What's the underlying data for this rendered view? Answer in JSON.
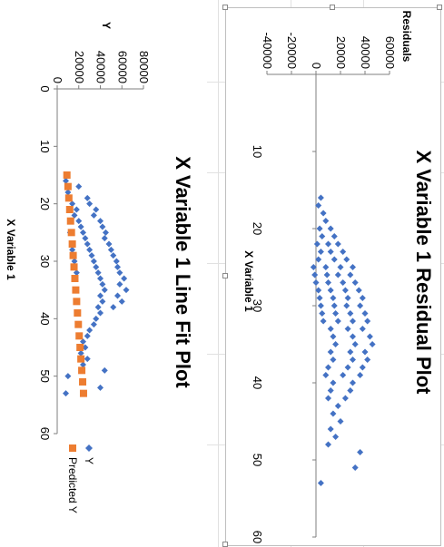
{
  "chart_data": [
    {
      "type": "scatter",
      "title": "X Variable 1  Residual Plot",
      "xlabel": "X Variable 1",
      "ylabel": "Residuals",
      "xlim": [
        0,
        60
      ],
      "ylim": [
        -40000,
        60000
      ],
      "x_ticks": [
        "10",
        "20",
        "30",
        "40",
        "50",
        "60"
      ],
      "y_ticks": [
        "-40000",
        "-20000",
        "0",
        "20000",
        "40000",
        "60000"
      ],
      "grid": false,
      "legend": "none",
      "series": [
        {
          "color": "#4472c4",
          "marker": "diamond",
          "x": [
            16,
            17,
            18,
            19,
            20,
            20,
            21,
            21,
            22,
            22,
            22,
            23,
            23,
            23,
            24,
            24,
            24,
            25,
            25,
            25,
            25,
            26,
            26,
            26,
            26,
            27,
            27,
            27,
            27,
            28,
            28,
            28,
            28,
            29,
            29,
            29,
            29,
            30,
            30,
            30,
            30,
            31,
            31,
            31,
            31,
            32,
            32,
            32,
            32,
            33,
            33,
            33,
            34,
            34,
            34,
            35,
            35,
            35,
            36,
            36,
            36,
            37,
            37,
            37,
            38,
            38,
            38,
            39,
            39,
            39,
            40,
            40,
            41,
            41,
            42,
            42,
            43,
            44,
            45,
            46,
            47,
            48,
            49,
            51,
            53
          ],
          "y": [
            4000,
            2000,
            6000,
            8000,
            12000,
            3000,
            15000,
            5000,
            18000,
            10000,
            1000,
            22000,
            12000,
            4000,
            25000,
            15000,
            2000,
            30000,
            20000,
            8000,
            -2000,
            28000,
            18000,
            9000,
            -1000,
            32000,
            22000,
            10000,
            0,
            35000,
            24000,
            12000,
            2000,
            38000,
            26000,
            14000,
            3000,
            36000,
            25000,
            15000,
            4000,
            40000,
            28000,
            16000,
            5000,
            42000,
            30000,
            18000,
            6000,
            38000,
            26000,
            12000,
            44000,
            30000,
            14000,
            46000,
            32000,
            16000,
            40000,
            28000,
            12000,
            42000,
            30000,
            14000,
            38000,
            26000,
            10000,
            36000,
            22000,
            8000,
            30000,
            14000,
            28000,
            12000,
            24000,
            10000,
            18000,
            14000,
            20000,
            12000,
            16000,
            10000,
            36000,
            32000,
            4000
          ]
        }
      ]
    },
    {
      "type": "scatter",
      "title": "X Variable 1 Line Fit  Plot",
      "xlabel": "X Variable 1",
      "ylabel": "Y",
      "xlim": [
        0,
        60
      ],
      "ylim": [
        0,
        80000
      ],
      "x_ticks": [
        "0",
        "10",
        "20",
        "30",
        "40",
        "50",
        "60"
      ],
      "y_ticks": [
        "0",
        "20000",
        "40000",
        "60000",
        "80000"
      ],
      "grid": false,
      "legend": "right",
      "series": [
        {
          "name": "Y",
          "color": "#4472c4",
          "marker": "diamond",
          "x": [
            16,
            17,
            18,
            19,
            20,
            20,
            21,
            21,
            22,
            22,
            23,
            23,
            24,
            24,
            25,
            25,
            25,
            26,
            26,
            27,
            27,
            28,
            28,
            28,
            29,
            29,
            30,
            30,
            30,
            31,
            31,
            32,
            32,
            32,
            33,
            33,
            34,
            34,
            35,
            35,
            36,
            36,
            37,
            37,
            38,
            38,
            39,
            40,
            41,
            42,
            43,
            44,
            45,
            46,
            47,
            48,
            49,
            50,
            52,
            53
          ],
          "y": [
            8000,
            20000,
            10000,
            28000,
            14000,
            30000,
            18000,
            36000,
            16000,
            34000,
            20000,
            40000,
            22000,
            42000,
            24000,
            45000,
            12000,
            26000,
            44000,
            28000,
            48000,
            30000,
            50000,
            14000,
            32000,
            52000,
            34000,
            55000,
            16000,
            36000,
            56000,
            38000,
            58000,
            18000,
            40000,
            62000,
            42000,
            58000,
            44000,
            64000,
            40000,
            56000,
            42000,
            60000,
            38000,
            52000,
            40000,
            36000,
            34000,
            30000,
            28000,
            24000,
            26000,
            22000,
            28000,
            24000,
            44000,
            10000,
            40000,
            8000
          ]
        },
        {
          "name": "Predicted Y",
          "color": "#ed7d31",
          "marker": "square",
          "x": [
            15,
            17,
            19,
            21,
            23,
            25,
            27,
            29,
            31,
            33,
            35,
            37,
            39,
            41,
            43,
            45,
            47,
            49,
            51,
            53
          ],
          "y": [
            9000,
            10000,
            10800,
            11600,
            12400,
            13200,
            14000,
            14800,
            15600,
            16400,
            17200,
            18000,
            18800,
            19600,
            20400,
            21200,
            22000,
            22800,
            23600,
            24400
          ]
        }
      ]
    }
  ]
}
